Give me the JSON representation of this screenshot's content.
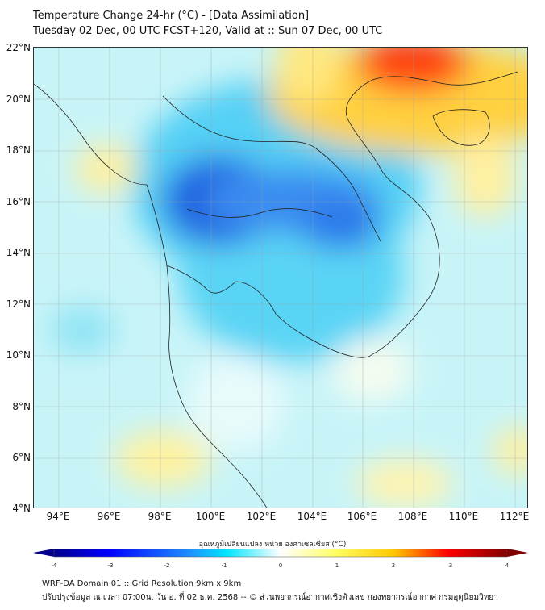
{
  "title": "Temperature Change 24-hr (°C) - [Data Assimilation]",
  "subtitle": "Tuesday 02 Dec, 00 UTC FCST+120, Valid at :: Sun 07 Dec, 00 UTC",
  "map": {
    "lat_labels": [
      "22°N",
      "20°N",
      "18°N",
      "16°N",
      "14°N",
      "12°N",
      "10°N",
      "8°N",
      "6°N",
      "4°N"
    ],
    "lon_labels": [
      "94°E",
      "96°E",
      "98°E",
      "100°E",
      "102°E",
      "104°E",
      "106°E",
      "108°E",
      "110°E",
      "112°E"
    ],
    "lat_range": [
      4,
      22
    ],
    "lon_range": [
      93,
      112.5
    ]
  },
  "colorbar": {
    "title": "อุณหภูมิเปลี่ยนแปลง หน่วย องศาเซลเซียส (°C)",
    "ticks": [
      "-4",
      "-3",
      "-2",
      "-1",
      "0",
      "1",
      "2",
      "3",
      "4"
    ],
    "range": [
      -4,
      4
    ],
    "colors": [
      "#00008b",
      "#0000ff",
      "#1e90ff",
      "#00e5ff",
      "#ffffff",
      "#ffff66",
      "#ffc800",
      "#ff0000",
      "#800000"
    ]
  },
  "footer": {
    "line1": "WRF-DA Domain 01 :: Grid Resolution 9km x 9km",
    "line2": "ปรับปรุงข้อมูล ณ เวลา 07:00น. วัน อ. ที่ 02 ธ.ค. 2568 -- © ส่วนพยากรณ์อากาศเชิงตัวเลข กองพยากรณ์อากาศ กรมอุตุนิยมวิทยา"
  }
}
